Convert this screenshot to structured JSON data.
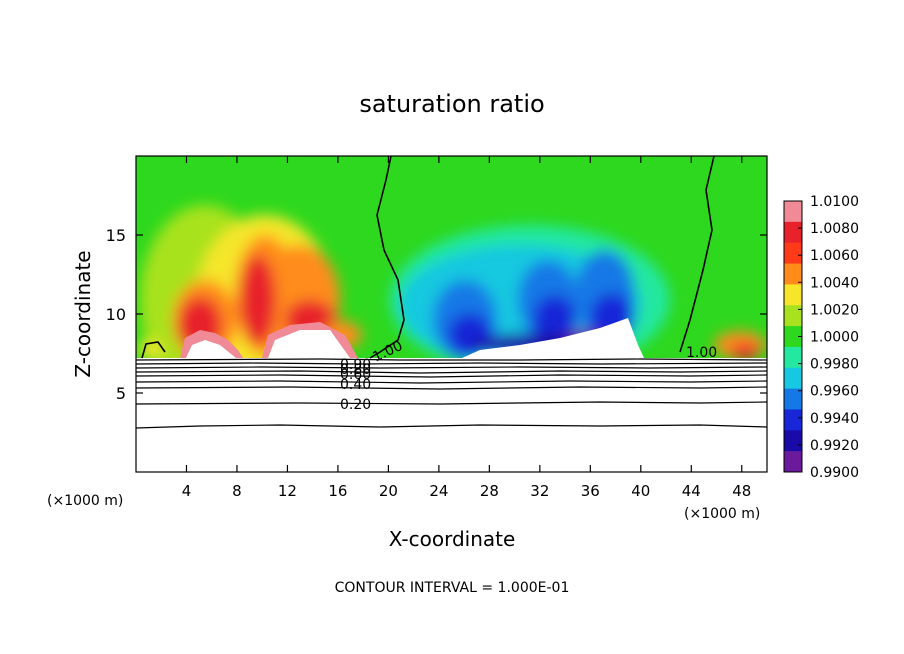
{
  "chart_data": {
    "type": "heatmap",
    "title": "saturation ratio",
    "xlabel": "X-coordinate",
    "ylabel": "Z-coordinate",
    "x_unit": "(×1000 m)",
    "z_unit": "(×1000 m)",
    "xlim": [
      0,
      50
    ],
    "ylim": [
      0,
      20
    ],
    "x_ticks": [
      "4",
      "8",
      "12",
      "16",
      "20",
      "24",
      "28",
      "32",
      "36",
      "40",
      "44",
      "48"
    ],
    "y_ticks": [
      "5",
      "10",
      "15"
    ],
    "footer": "CONTOUR INTERVAL = 1.000E-01",
    "colorbar": {
      "labels": [
        "1.0100",
        "1.0080",
        "1.0060",
        "1.0040",
        "1.0020",
        "1.0000",
        "0.9980",
        "0.9960",
        "0.9940",
        "0.9920",
        "0.9900"
      ],
      "colors": [
        "#f08a96",
        "#e8222a",
        "#ff3a18",
        "#ff8c1a",
        "#f5e62a",
        "#a8e21e",
        "#2ed81e",
        "#24e8a0",
        "#18c8e0",
        "#1478e6",
        "#1828d8",
        "#1a0aa8",
        "#6a1a9a"
      ]
    },
    "contour_labels": [
      {
        "text": "1.00",
        "x": 19.5,
        "z": 8.1
      },
      {
        "text": "1.00",
        "x": 44.5,
        "z": 7.5
      },
      {
        "text": "0.90",
        "x": 17.5,
        "z": 7.2
      },
      {
        "text": "0.80",
        "x": 17.5,
        "z": 6.7
      },
      {
        "text": "0.60",
        "x": 17.5,
        "z": 6.3
      },
      {
        "text": "0.40",
        "x": 17.5,
        "z": 5.8
      },
      {
        "text": "0.20",
        "x": 17.5,
        "z": 4.5
      }
    ]
  }
}
